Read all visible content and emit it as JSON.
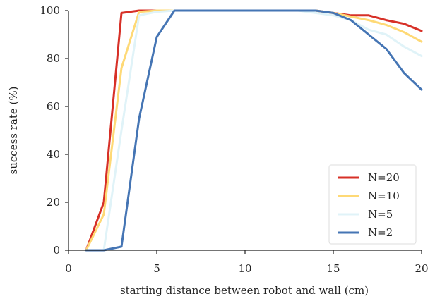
{
  "chart_data": {
    "type": "line",
    "xlabel": "starting distance between robot and wall (cm)",
    "ylabel": "success rate (%)",
    "xlim": [
      0,
      20
    ],
    "ylim": [
      0,
      100
    ],
    "xticks": [
      0,
      5,
      10,
      15,
      20
    ],
    "yticks": [
      0,
      20,
      40,
      60,
      80,
      100
    ],
    "grid": false,
    "legend_position": "bottom-right",
    "series": [
      {
        "name": "N=20",
        "color": "#d73027",
        "x": [
          1,
          2,
          3,
          4,
          5,
          6,
          7,
          8,
          9,
          10,
          11,
          12,
          13,
          14,
          15,
          16,
          17,
          18,
          19,
          20
        ],
        "y": [
          0,
          20,
          99,
          100,
          100,
          100,
          100,
          100,
          100,
          100,
          100,
          100,
          100,
          100,
          99,
          98,
          98,
          96,
          94.5,
          91.5
        ]
      },
      {
        "name": "N=10",
        "color": "#fed976",
        "x": [
          1,
          2,
          3,
          4,
          5,
          6,
          7,
          8,
          9,
          10,
          11,
          12,
          13,
          14,
          15,
          16,
          17,
          18,
          19,
          20
        ],
        "y": [
          0,
          15,
          76,
          99.5,
          100,
          100,
          100,
          100,
          100,
          100,
          100,
          100,
          100,
          100,
          99,
          97.5,
          96,
          94,
          91,
          87
        ]
      },
      {
        "name": "N=5",
        "color": "#e0f3f8",
        "x": [
          1,
          2,
          3,
          4,
          5,
          6,
          7,
          8,
          9,
          10,
          11,
          12,
          13,
          14,
          15,
          16,
          17,
          18,
          19,
          20
        ],
        "y": [
          0,
          0,
          50,
          98,
          99.5,
          100,
          100,
          100,
          100,
          100,
          100,
          100,
          100,
          99,
          98,
          96,
          92,
          90,
          85,
          81
        ]
      },
      {
        "name": "N=2",
        "color": "#4575b4",
        "x": [
          1,
          2,
          3,
          4,
          5,
          6,
          7,
          8,
          9,
          10,
          11,
          12,
          13,
          14,
          15,
          16,
          17,
          18,
          19,
          20
        ],
        "y": [
          0,
          0,
          1.5,
          55,
          89,
          100,
          100,
          100,
          100,
          100,
          100,
          100,
          100,
          100,
          99,
          96,
          90,
          84,
          74,
          67
        ]
      }
    ]
  }
}
